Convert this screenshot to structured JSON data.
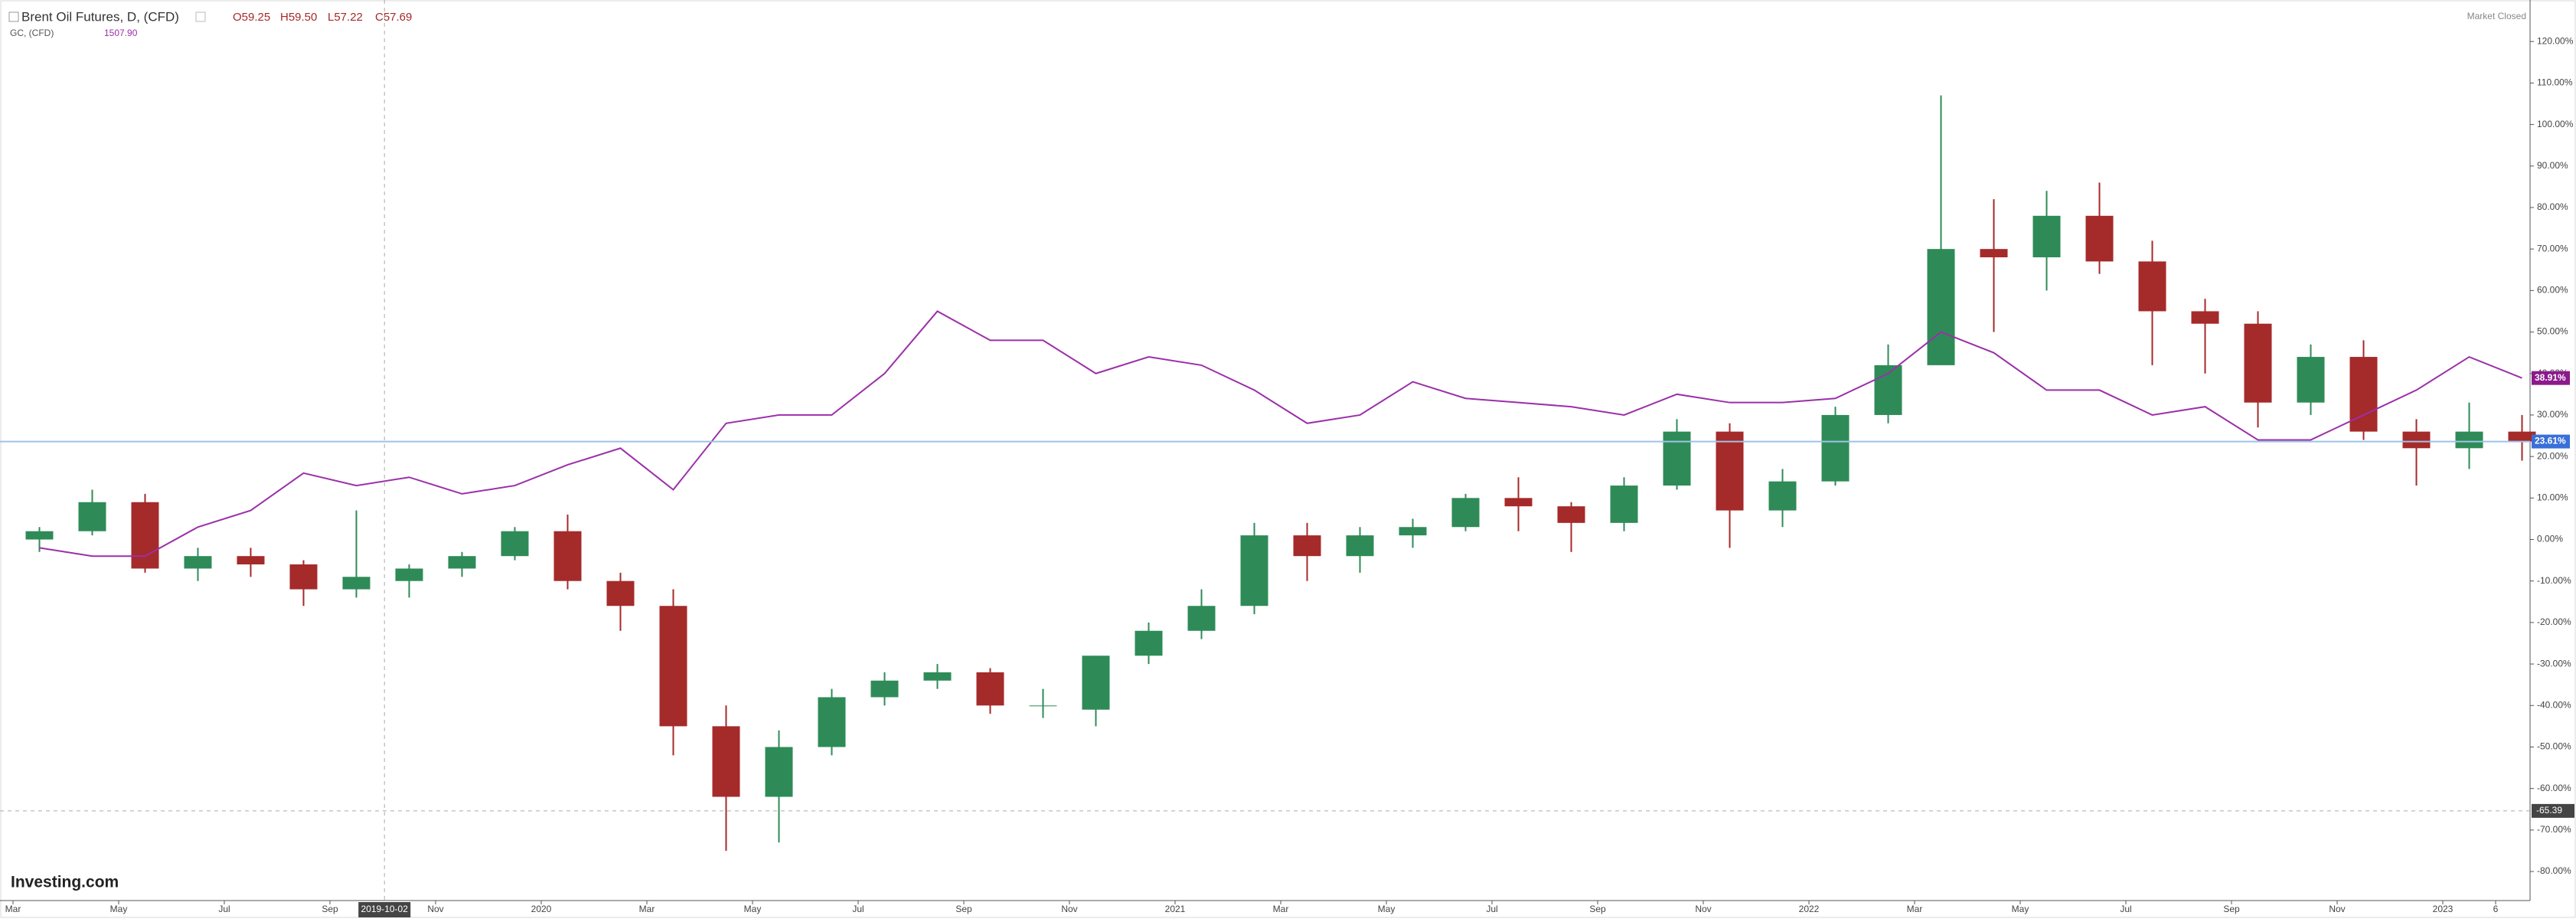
{
  "chart_data": {
    "type": "candlestick",
    "status": "Market Closed",
    "logo": "Investing.com",
    "up_color": "#2e8b57",
    "down_color": "#a52a2a",
    "categories": [
      "Mar",
      null,
      "May",
      null,
      "Jul",
      null,
      "Sep",
      null,
      "Nov",
      null,
      "2020",
      null,
      "Mar",
      null,
      "May",
      null,
      "Jul",
      null,
      "Sep",
      null,
      "Nov",
      null,
      "2021",
      null,
      "Mar",
      null,
      "May",
      null,
      "Jul",
      null,
      "Sep",
      null,
      "Nov",
      null,
      "2022",
      null,
      "Mar",
      null,
      "May",
      null,
      "Jul",
      null,
      "Sep",
      null,
      "Nov",
      null,
      "2023",
      "6"
    ],
    "series": [
      {
        "name": "Brent Oil Futures, D, (CFD)",
        "quote": [
          "O59.25",
          "H59.50",
          "L57.22",
          "C57.69"
        ],
        "open": [
          0,
          2,
          9,
          -7,
          -4,
          -6,
          -12,
          -10,
          -7,
          -4,
          2,
          -10,
          -16,
          -45,
          -62,
          -50,
          -38,
          -34,
          -32,
          -40,
          -41,
          -28,
          -22,
          -16,
          1,
          -4,
          1,
          3,
          10,
          8,
          4,
          13,
          26,
          7,
          14,
          30,
          42,
          70,
          68,
          78,
          67,
          55,
          52,
          33,
          44,
          26,
          22,
          26
        ],
        "high": [
          3,
          12,
          11,
          -2,
          -2,
          -5,
          7,
          -6,
          -3,
          3,
          6,
          -8,
          -12,
          -40,
          -46,
          -36,
          -32,
          -30,
          -31,
          -36,
          -28,
          -20,
          -12,
          4,
          4,
          3,
          5,
          11,
          15,
          9,
          15,
          29,
          28,
          17,
          32,
          47,
          107,
          82,
          84,
          86,
          72,
          58,
          55,
          47,
          48,
          29,
          33,
          30
        ],
        "low": [
          -3,
          1,
          -8,
          -10,
          -9,
          -16,
          -14,
          -14,
          -9,
          -5,
          -12,
          -22,
          -52,
          -75,
          -73,
          -52,
          -40,
          -36,
          -42,
          -43,
          -45,
          -30,
          -24,
          -18,
          -10,
          -8,
          -2,
          2,
          2,
          -3,
          2,
          12,
          -2,
          3,
          13,
          28,
          44,
          50,
          60,
          64,
          42,
          40,
          27,
          30,
          24,
          13,
          17,
          19
        ],
        "close": [
          2,
          9,
          -7,
          -4,
          -6,
          -12,
          -9,
          -7,
          -4,
          2,
          -10,
          -16,
          -45,
          -62,
          -50,
          -38,
          -34,
          -32,
          -40,
          -40,
          -28,
          -22,
          -16,
          1,
          -4,
          1,
          3,
          10,
          8,
          4,
          13,
          26,
          7,
          14,
          30,
          42,
          70,
          68,
          78,
          67,
          55,
          52,
          33,
          44,
          26,
          22,
          26,
          23.61
        ]
      },
      {
        "name": "GC, (CFD)",
        "quote": "1507.90",
        "color": "#9b30a8",
        "values": [
          -2,
          -4,
          -4,
          3,
          7,
          16,
          13,
          15,
          11,
          13,
          18,
          22,
          12,
          28,
          30,
          30,
          40,
          55,
          48,
          48,
          40,
          44,
          42,
          36,
          28,
          30,
          38,
          34,
          33,
          32,
          30,
          35,
          33,
          33,
          34,
          40,
          50,
          45,
          36,
          36,
          30,
          32,
          24,
          24,
          30,
          36,
          44,
          38.91
        ]
      }
    ],
    "ylim": [
      -87,
      130
    ],
    "yticks": [
      {
        "value": -80,
        "label": "-80.00%"
      },
      {
        "value": -70,
        "label": "-70.00%"
      },
      {
        "value": -60,
        "label": "-60.00%"
      },
      {
        "value": -50,
        "label": "-50.00%"
      },
      {
        "value": -40,
        "label": "-40.00%"
      },
      {
        "value": -30,
        "label": "-30.00%"
      },
      {
        "value": -20,
        "label": "-20.00%"
      },
      {
        "value": -10,
        "label": "-10.00%"
      },
      {
        "value": 0,
        "label": "0.00%"
      },
      {
        "value": 10,
        "label": "10.00%"
      },
      {
        "value": 20,
        "label": "20.00%"
      },
      {
        "value": 30,
        "label": "30.00%"
      },
      {
        "value": 40,
        "label": "40.00%"
      },
      {
        "value": 50,
        "label": "50.00%"
      },
      {
        "value": 60,
        "label": "60.00%"
      },
      {
        "value": 70,
        "label": "70.00%"
      },
      {
        "value": 80,
        "label": "80.00%"
      },
      {
        "value": 90,
        "label": "90.00%"
      },
      {
        "value": 100,
        "label": "100.00%"
      },
      {
        "value": 110,
        "label": "110.00%"
      },
      {
        "value": 120,
        "label": "120.00%"
      }
    ],
    "markers": [
      {
        "value": 38.91,
        "label": "38.91%",
        "color": "#8b1a8b",
        "line": false
      },
      {
        "value": 23.61,
        "label": "23.61%",
        "color": "#3a6fd8",
        "line": true
      }
    ],
    "crosshair": {
      "x_label": "2019-10-02",
      "y": -65.39
    }
  }
}
